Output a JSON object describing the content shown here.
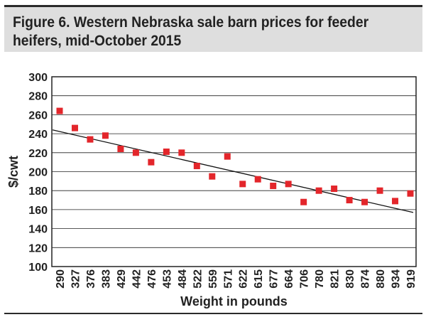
{
  "header": {
    "title": "Figure 6. Western Nebraska sale barn prices for feeder heifers, mid-October 2015"
  },
  "chart_data": {
    "type": "scatter",
    "title": "Figure 6. Western Nebraska sale barn prices for feeder heifers, mid-October 2015",
    "xlabel": "Weight in pounds",
    "ylabel": "$/cwt",
    "ylim": [
      100,
      300
    ],
    "yticks": [
      100,
      120,
      140,
      160,
      180,
      200,
      220,
      240,
      260,
      280,
      300
    ],
    "grid": "horizontal",
    "categories": [
      "290",
      "327",
      "376",
      "383",
      "429",
      "442",
      "476",
      "453",
      "484",
      "522",
      "559",
      "571",
      "622",
      "615",
      "677",
      "664",
      "706",
      "780",
      "821",
      "830",
      "874",
      "880",
      "934",
      "919"
    ],
    "values": [
      264,
      246,
      234,
      238,
      224,
      220,
      210,
      221,
      220,
      206,
      195,
      216,
      187,
      192,
      185,
      187,
      168,
      180,
      182,
      170,
      168,
      180,
      169,
      177
    ],
    "trendline": {
      "start": 244,
      "end": 157
    },
    "colors": {
      "marker": "#e3262b",
      "trendline": "#111111",
      "grid": "#222222",
      "border": "#222222"
    }
  }
}
